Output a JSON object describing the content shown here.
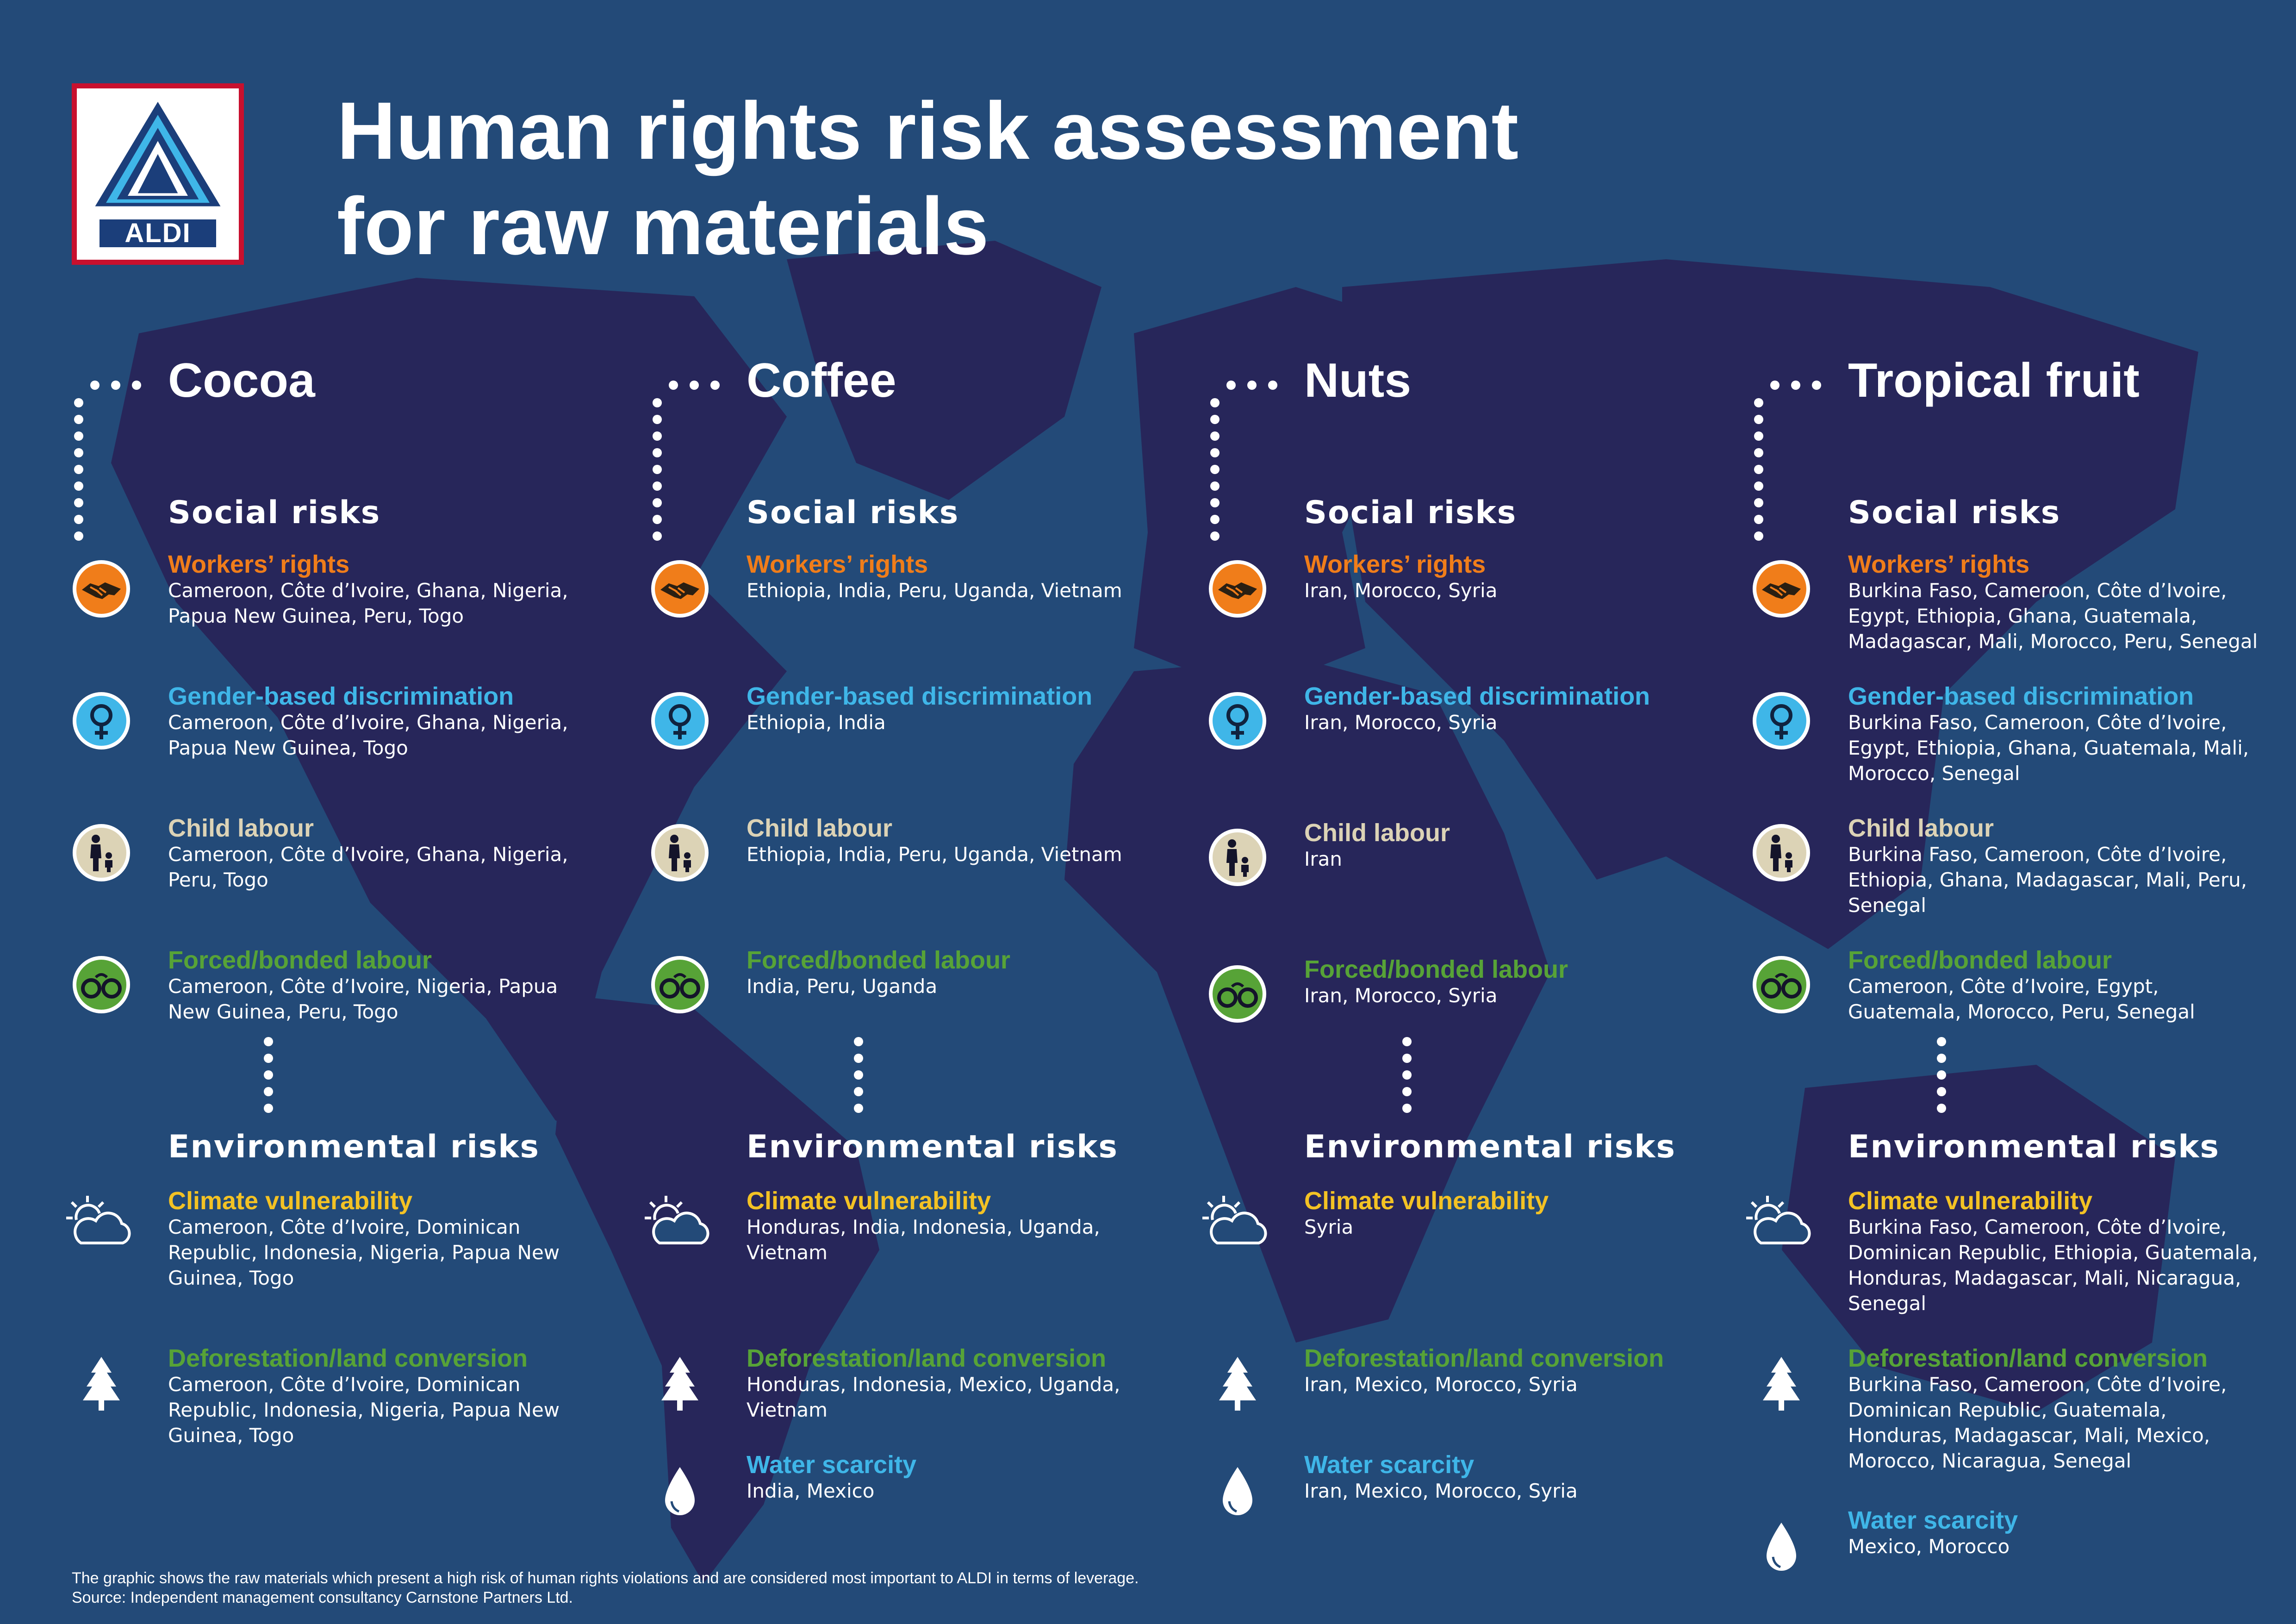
{
  "header": {
    "logo_text": "ALDI",
    "title_line1": "Human rights risk assessment",
    "title_line2": "for raw materials"
  },
  "colors": {
    "background": "#234a78",
    "continents": "#27265a",
    "workers_rights": "#f07d1a",
    "gender_discrimination": "#3fb6e8",
    "child_labour": "#dcd3b6",
    "forced_labour": "#57a337",
    "climate": "#f3c224",
    "deforestation": "#57a337",
    "water": "#3fb6e8",
    "logo_red": "#c8102e",
    "logo_blue": "#1b3e7a"
  },
  "columns": [
    {
      "title": "Cocoa",
      "social_title": "Social risks",
      "social": [
        {
          "icon": "handshake-icon",
          "title": "Workers’ rights",
          "countries": "Cameroon, Côte d’Ivoire, Ghana, Nigeria,\nPapua New Guinea, Peru, Togo"
        },
        {
          "icon": "female-symbol-icon",
          "title": "Gender-based discrimination",
          "countries": "Cameroon, Côte d’Ivoire, Ghana, Nigeria,\nPapua New Guinea, Togo"
        },
        {
          "icon": "adult-child-icon",
          "title": "Child labour",
          "countries": "Cameroon, Côte d’Ivoire, Ghana, Nigeria,\nPeru, Togo"
        },
        {
          "icon": "handcuffs-icon",
          "title": "Forced/bonded labour",
          "countries": "Cameroon, Côte d’Ivoire, Nigeria, Papua\nNew Guinea, Peru, Togo"
        }
      ],
      "env_title": "Environmental risks",
      "environmental": [
        {
          "icon": "sun-cloud-icon",
          "title": "Climate vulnerability",
          "countries": "Cameroon, Côte d’Ivoire, Dominican\nRepublic, Indonesia, Nigeria, Papua New\nGuinea, Togo"
        },
        {
          "icon": "tree-icon",
          "title": "Deforestation/land conversion",
          "countries": "Cameroon, Côte d’Ivoire, Dominican\nRepublic, Indonesia, Nigeria, Papua New\nGuinea, Togo"
        }
      ]
    },
    {
      "title": "Coffee",
      "social_title": "Social risks",
      "social": [
        {
          "icon": "handshake-icon",
          "title": "Workers’ rights",
          "countries": "Ethiopia, India, Peru, Uganda, Vietnam"
        },
        {
          "icon": "female-symbol-icon",
          "title": "Gender-based discrimination",
          "countries": "Ethiopia, India"
        },
        {
          "icon": "adult-child-icon",
          "title": "Child labour",
          "countries": "Ethiopia, India, Peru, Uganda, Vietnam"
        },
        {
          "icon": "handcuffs-icon",
          "title": "Forced/bonded labour",
          "countries": "India, Peru, Uganda"
        }
      ],
      "env_title": "Environmental risks",
      "environmental": [
        {
          "icon": "sun-cloud-icon",
          "title": "Climate vulnerability",
          "countries": "Honduras, India, Indonesia, Uganda,\nVietnam"
        },
        {
          "icon": "tree-icon",
          "title": "Deforestation/land conversion",
          "countries": "Honduras, Indonesia, Mexico, Uganda,\nVietnam"
        },
        {
          "icon": "water-drop-icon",
          "title": "Water scarcity",
          "countries": "India, Mexico"
        }
      ]
    },
    {
      "title": "Nuts",
      "social_title": "Social risks",
      "social": [
        {
          "icon": "handshake-icon",
          "title": "Workers’ rights",
          "countries": "Iran, Morocco, Syria"
        },
        {
          "icon": "female-symbol-icon",
          "title": "Gender-based discrimination",
          "countries": "Iran, Morocco, Syria"
        },
        {
          "icon": "adult-child-icon",
          "title": "Child labour",
          "countries": "Iran"
        },
        {
          "icon": "handcuffs-icon",
          "title": "Forced/bonded labour",
          "countries": "Iran, Morocco, Syria"
        }
      ],
      "env_title": "Environmental risks",
      "environmental": [
        {
          "icon": "sun-cloud-icon",
          "title": "Climate vulnerability",
          "countries": "Syria"
        },
        {
          "icon": "tree-icon",
          "title": "Deforestation/land conversion",
          "countries": "Iran, Mexico, Morocco, Syria"
        },
        {
          "icon": "water-drop-icon",
          "title": "Water scarcity",
          "countries": "Iran, Mexico, Morocco, Syria"
        }
      ]
    },
    {
      "title": "Tropical fruit",
      "social_title": "Social risks",
      "social": [
        {
          "icon": "handshake-icon",
          "title": "Workers’ rights",
          "countries": "Burkina Faso, Cameroon, Côte d’Ivoire,\nEgypt, Ethiopia, Ghana, Guatemala,\nMadagascar, Mali, Morocco, Peru, Senegal"
        },
        {
          "icon": "female-symbol-icon",
          "title": "Gender-based discrimination",
          "countries": "Burkina Faso, Cameroon, Côte d’Ivoire,\nEgypt, Ethiopia, Ghana, Guatemala, Mali,\nMorocco, Senegal"
        },
        {
          "icon": "adult-child-icon",
          "title": "Child labour",
          "countries": "Burkina Faso, Cameroon, Côte d’Ivoire,\nEthiopia, Ghana, Madagascar, Mali, Peru,\nSenegal"
        },
        {
          "icon": "handcuffs-icon",
          "title": "Forced/bonded labour",
          "countries": "Cameroon, Côte d’Ivoire, Egypt,\nGuatemala, Morocco, Peru, Senegal"
        }
      ],
      "env_title": "Environmental risks",
      "environmental": [
        {
          "icon": "sun-cloud-icon",
          "title": "Climate vulnerability",
          "countries": "Burkina Faso, Cameroon, Côte d’Ivoire,\nDominican Republic, Ethiopia, Guatemala,\nHonduras, Madagascar, Mali, Nicaragua,\nSenegal"
        },
        {
          "icon": "tree-icon",
          "title": "Deforestation/land conversion",
          "countries": "Burkina Faso, Cameroon, Côte d’Ivoire,\nDominican Republic, Guatemala,\nHonduras, Madagascar, Mali, Mexico,\nMorocco, Nicaragua, Senegal"
        },
        {
          "icon": "water-drop-icon",
          "title": "Water scarcity",
          "countries": "Mexico, Morocco"
        }
      ]
    }
  ],
  "footer": {
    "note": "The graphic shows the raw materials which present a high risk of human rights violations and are considered most important to ALDI in terms of leverage.",
    "source": "Source: Independent management consultancy Carnstone Partners Ltd."
  }
}
